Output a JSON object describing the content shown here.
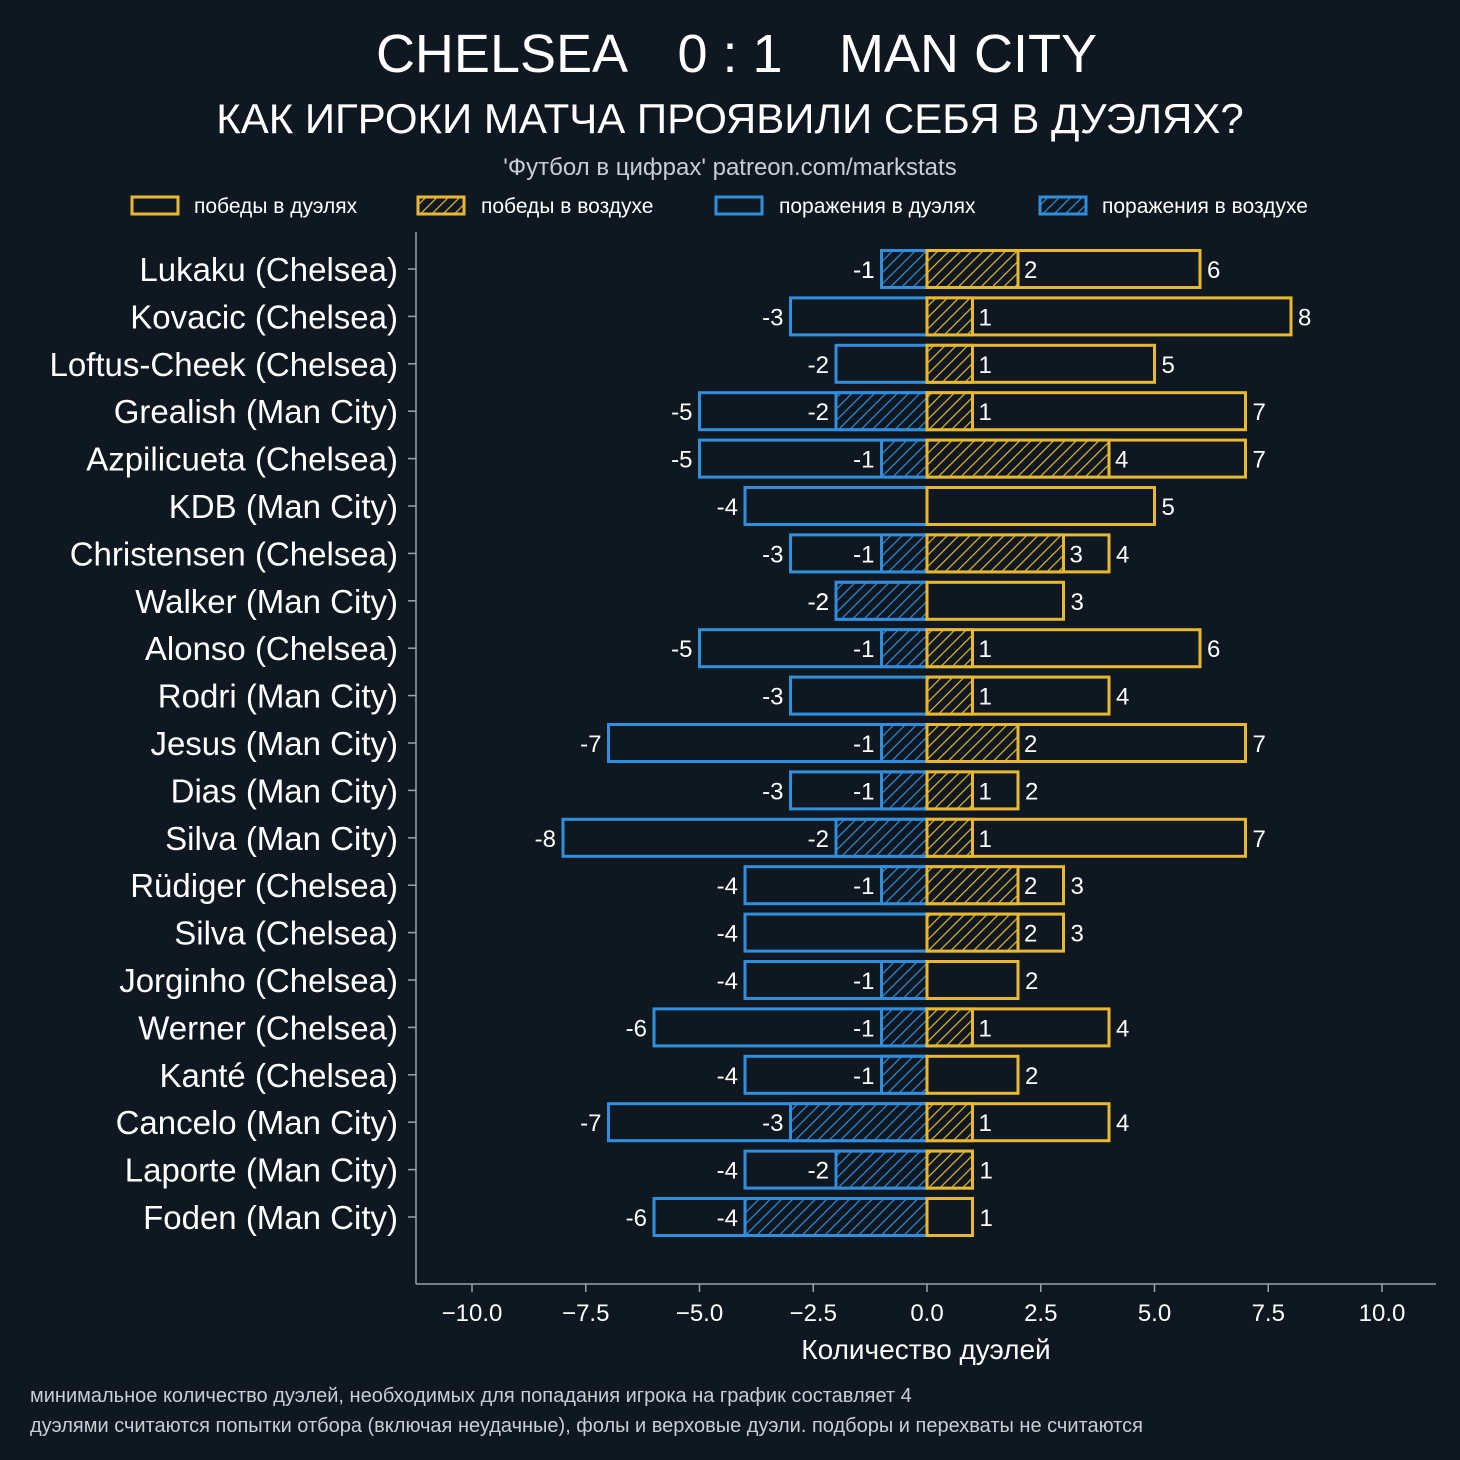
{
  "header": {
    "team_home": "CHELSEA",
    "score": "0 : 1",
    "team_away": "MAN CITY",
    "subtitle": "КАК ИГРОКИ МАТЧА ПРОЯВИЛИ СЕБЯ В ДУЭЛЯХ?",
    "source": "'Футбол в цифрах' patreon.com/markstats"
  },
  "legend": {
    "placement": "top",
    "items": [
      {
        "label": "победы в дуэлях",
        "kind": "duel-wins"
      },
      {
        "label": "победы в воздухе",
        "kind": "aerial-wins"
      },
      {
        "label": "поражения в дуэлях",
        "kind": "duel-losses"
      },
      {
        "label": "поражения в воздухе",
        "kind": "aerial-losses"
      }
    ]
  },
  "colors": {
    "background": "#0f1720",
    "wins": "#e8b830",
    "losses": "#2f8fde",
    "axis": "#9aa4ae",
    "text": "#ffffff"
  },
  "footnotes": [
    "минимальное количество дуэлей, необходимых для попадания игрока на график составляет 4",
    "дуэлями считаются попытки отбора (включая неудачные), фолы и верховые дуэли. подборы и перехваты не считаются"
  ],
  "chart_data": {
    "type": "bar",
    "orientation": "horizontal",
    "title": "КАК ИГРОКИ МАТЧА ПРОЯВИЛИ СЕБЯ В ДУЭЛЯХ?",
    "xlabel": "Количество дуэлей",
    "ylabel": "",
    "xlim": [
      -11,
      11.5
    ],
    "xticks": [
      -10,
      -7.5,
      -5,
      -2.5,
      0,
      2.5,
      5,
      7.5,
      10
    ],
    "xtick_labels": [
      "−10.0",
      "−7.5",
      "−5.0",
      "−2.5",
      "0.0",
      "2.5",
      "5.0",
      "7.5",
      "10.0"
    ],
    "grid": false,
    "categories": [
      "Lukaku (Chelsea)",
      "Kovacic (Chelsea)",
      "Loftus-Cheek (Chelsea)",
      "Grealish (Man City)",
      "Azpilicueta (Chelsea)",
      "KDB (Man City)",
      "Christensen (Chelsea)",
      "Walker (Man City)",
      "Alonso (Chelsea)",
      "Rodri (Man City)",
      "Jesus (Man City)",
      "Dias (Man City)",
      "Silva (Man City)",
      "Rüdiger (Chelsea)",
      "Silva (Chelsea)",
      "Jorginho (Chelsea)",
      "Werner (Chelsea)",
      "Kanté (Chelsea)",
      "Cancelo (Man City)",
      "Laporte (Man City)",
      "Foden (Man City)"
    ],
    "series": [
      {
        "name": "победы в дуэлях",
        "values": [
          6,
          8,
          5,
          7,
          7,
          5,
          4,
          3,
          6,
          4,
          7,
          2,
          7,
          3,
          3,
          2,
          4,
          2,
          4,
          1,
          1
        ]
      },
      {
        "name": "победы в воздухе",
        "values": [
          2,
          1,
          1,
          1,
          4,
          0,
          3,
          0,
          1,
          1,
          2,
          1,
          1,
          2,
          2,
          0,
          1,
          0,
          1,
          1,
          0
        ]
      },
      {
        "name": "поражения в дуэлях",
        "values": [
          -1,
          -3,
          -2,
          -5,
          -5,
          -4,
          -3,
          -2,
          -5,
          -3,
          -7,
          -3,
          -8,
          -4,
          -4,
          -4,
          -6,
          -4,
          -7,
          -4,
          -6
        ]
      },
      {
        "name": "поражения в воздухе",
        "values": [
          -1,
          0,
          0,
          -2,
          -1,
          0,
          -1,
          -2,
          -1,
          0,
          -1,
          -1,
          -2,
          -1,
          0,
          -1,
          -1,
          -1,
          -3,
          -2,
          -4
        ]
      }
    ]
  }
}
